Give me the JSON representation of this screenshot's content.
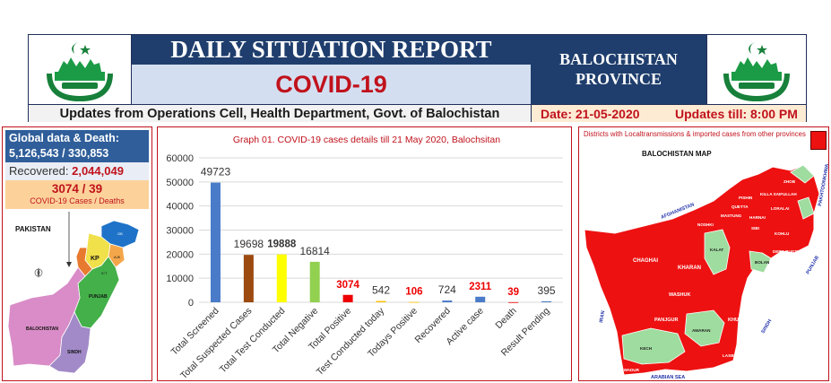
{
  "header": {
    "title": "DAILY SITUATION REPORT",
    "subtitle": "COVID-19",
    "province_line1": "BALOCHISTAN",
    "province_line2": "PROVINCE",
    "updates_text": "Updates from Operations Cell, Health Department, Govt. of Balochistan",
    "date_text": "Date: 21-05-2020",
    "updates_till": "Updates till: 8:00 PM"
  },
  "global": {
    "label": "Global data & Death:",
    "cases_deaths": "5,126,543 / 330,853",
    "recovered_label": "Recovered:",
    "recovered_value": "2,044,049",
    "local_value": "3074 / 39",
    "local_caption": "COVID-19 Cases / Deaths"
  },
  "pakistan_map": {
    "title": "PAKISTAN",
    "labels": [
      "KP",
      "PUNJAB",
      "BALOCHISTAN",
      "SINDH",
      "AJK",
      "GB",
      "ICT"
    ],
    "colors": {
      "balochistan": "#d98cc7",
      "punjab": "#43b049",
      "sindh": "#a28ac8",
      "kp": "#f0e04a",
      "gb": "#1e73c8",
      "ajk": "#f4a64a",
      "fata": "#e87a30"
    }
  },
  "chart_data": {
    "type": "bar",
    "title": "Graph 01. COVID-19 cases details till 21 May 2020, Balochsitan",
    "categories": [
      "Total Screened",
      "Total Suspected Cases",
      "Total Test Conducted",
      "Total Negative",
      "Total Positive",
      "Test Conducted today",
      "Todays Positive",
      "Recovered",
      "Active case",
      "Death",
      "Result Pending"
    ],
    "values": [
      49723,
      19698,
      19888,
      16814,
      3074,
      542,
      106,
      724,
      2311,
      39,
      395
    ],
    "bar_colors": [
      "#4a7bc8",
      "#9c4a10",
      "#ffff00",
      "#92d050",
      "#ee0000",
      "#ffc000",
      "#ffc000",
      "#4a7bc8",
      "#4a7bc8",
      "#ee0000",
      "#4a7bc8"
    ],
    "label_colors": [
      "#333333",
      "#333333",
      "#333333",
      "#333333",
      "#ee0000",
      "#333333",
      "#ee0000",
      "#333333",
      "#ee0000",
      "#ee0000",
      "#333333"
    ],
    "label_bold": [
      false,
      false,
      true,
      false,
      true,
      false,
      true,
      false,
      true,
      true,
      false
    ],
    "yticks": [
      0,
      10000,
      20000,
      30000,
      40000,
      50000,
      60000
    ],
    "ylim": [
      0,
      60000
    ],
    "grid": true,
    "legend": "none"
  },
  "district_map": {
    "caption": "Districts with Localtransmissions & imported cases from other provinces",
    "title": "BALOCHISTAN MAP",
    "legend_color": "#ee1111",
    "affected_color": "#ee1111",
    "unaffected_color": "#9fdc9f",
    "neighbors": [
      "AFGHANISTAN",
      "IRAN",
      "PAKHTOONKHWA",
      "PUNJAB",
      "SINDH",
      "ARABIAN SEA"
    ],
    "districts": [
      "ZHOB",
      "KILLA SAIFULLAH",
      "LORALAI",
      "KOHLU",
      "DERA BUGTI",
      "HARNAI",
      "SIBI",
      "QUETTA",
      "PISHIN",
      "MASTUNG",
      "NOSHKI",
      "KALAT",
      "CHAGHAI",
      "KHARAN",
      "WASHUK",
      "PANJGUR",
      "KECH",
      "AWARAN",
      "GWADUR",
      "KHUZDAR",
      "LASBELA",
      "NASIRABAD",
      "BOLAN",
      "JAFFARABAD",
      "JHAL MAGSI",
      "BARKHAN",
      "MUSAKHEL",
      "ZIARAT"
    ]
  }
}
